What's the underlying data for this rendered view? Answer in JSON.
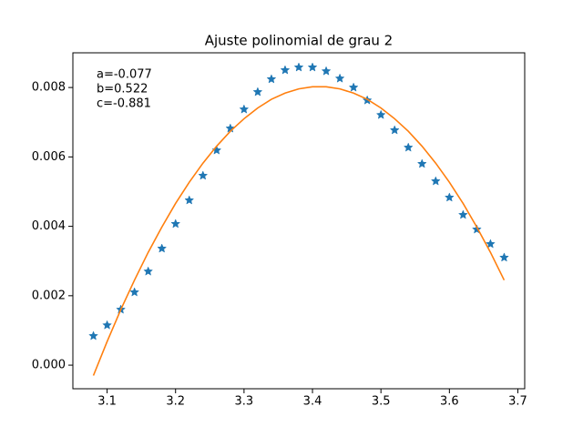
{
  "chart_data": {
    "type": "scatter",
    "title": "Ajuste polinomial de grau 2",
    "annotations": [
      "a=-0.077",
      "b=0.522",
      "c=-0.881"
    ],
    "x": [
      3.08,
      3.1,
      3.12,
      3.14,
      3.16,
      3.18,
      3.2,
      3.22,
      3.24,
      3.26,
      3.28,
      3.3,
      3.32,
      3.34,
      3.36,
      3.38,
      3.4,
      3.42,
      3.44,
      3.46,
      3.48,
      3.5,
      3.52,
      3.54,
      3.56,
      3.58,
      3.6,
      3.62,
      3.64,
      3.66,
      3.68
    ],
    "series": [
      {
        "type": "scatter",
        "marker": "star",
        "color": "#1f77b4",
        "values": [
          0.00084,
          0.00115,
          0.0016,
          0.0021,
          0.0027,
          0.00336,
          0.00407,
          0.00475,
          0.00546,
          0.00619,
          0.00682,
          0.00737,
          0.00787,
          0.00824,
          0.0085,
          0.00858,
          0.00858,
          0.00847,
          0.00826,
          0.008,
          0.00763,
          0.00721,
          0.00677,
          0.00627,
          0.0058,
          0.0053,
          0.00483,
          0.00433,
          0.00391,
          0.00349,
          0.0031
        ]
      },
      {
        "type": "line",
        "color": "#ff7f0e",
        "values": [
          -0.0003,
          0.00068,
          0.0016,
          0.00245,
          0.00325,
          0.00398,
          0.00466,
          0.00527,
          0.00582,
          0.00631,
          0.00674,
          0.0071,
          0.00741,
          0.00766,
          0.00784,
          0.00796,
          0.00802,
          0.00802,
          0.00796,
          0.00784,
          0.00766,
          0.00741,
          0.0071,
          0.00674,
          0.00631,
          0.00582,
          0.00527,
          0.00466,
          0.00398,
          0.00325,
          0.00245
        ]
      }
    ],
    "xlim": [
      3.05,
      3.71
    ],
    "ylim": [
      -0.00068,
      0.009
    ],
    "xticks": [
      3.1,
      3.2,
      3.3,
      3.4,
      3.5,
      3.6,
      3.7
    ],
    "yticks": [
      {
        "value": 0,
        "label": "0.000"
      },
      {
        "value": 0.002,
        "label": "0.002"
      },
      {
        "value": 0.004,
        "label": "0.004"
      },
      {
        "value": 0.006,
        "label": "0.006"
      },
      {
        "value": 0.008,
        "label": "0.008"
      }
    ],
    "grid": false
  }
}
